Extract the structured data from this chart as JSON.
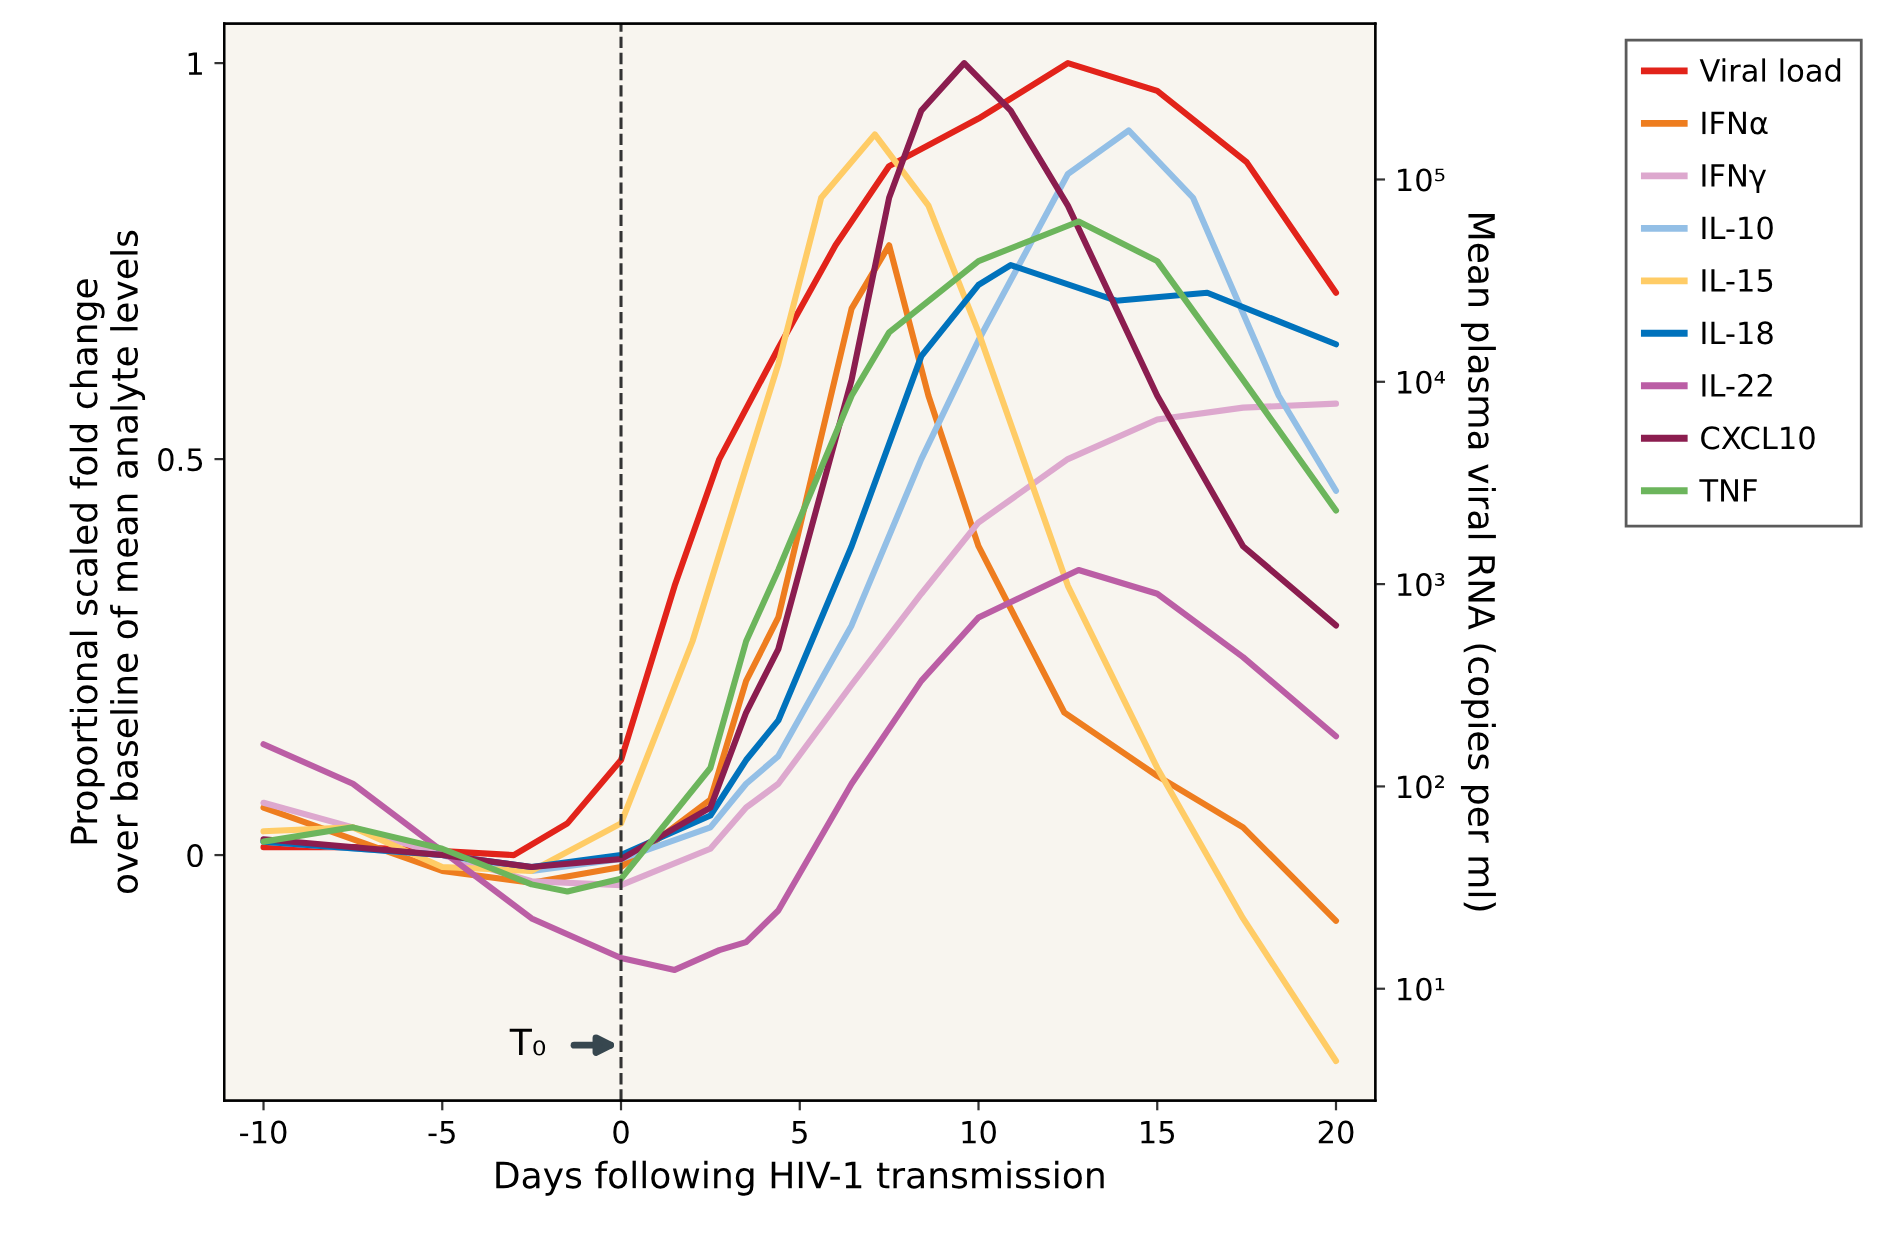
{
  "chart_data": {
    "type": "line",
    "xlabel": "Days following HIV-1 transmission",
    "ylabel": "Proportional scaled fold change\nover baseline of mean analyte levels",
    "y2label": "Mean plasma viral RNA (copies per ml)",
    "xlim": [
      -11.1,
      21.1
    ],
    "xticks": [
      -10,
      -5,
      0,
      5,
      10,
      15,
      20
    ],
    "ylim": [
      -0.31,
      1.05
    ],
    "yticks": [
      0,
      0.5,
      1
    ],
    "y2lim": [
      2.8,
      590000
    ],
    "y2ticks": [
      {
        "value": 10,
        "label": "10¹"
      },
      {
        "value": 100,
        "label": "10²"
      },
      {
        "value": 1000,
        "label": "10³"
      },
      {
        "value": 10000,
        "label": "10⁴"
      },
      {
        "value": 100000,
        "label": "10⁵"
      }
    ],
    "log": "y2",
    "grid": false,
    "legend": "right",
    "marker": "none",
    "line_style": "solid",
    "ref_lines": [
      {
        "axis": "x",
        "value": 0,
        "line_style": "dashed",
        "color": "#333333"
      }
    ],
    "annotations": [
      {
        "text": "T₀",
        "x": 0,
        "y": -0.24
      }
    ],
    "series": [
      {
        "name": "Viral load",
        "color": "#e2231a",
        "x": [
          -10,
          -7.5,
          -5,
          -3,
          -1.5,
          0,
          1.5,
          2.75,
          4.4,
          6,
          7.5,
          10,
          12.5,
          15,
          17.5,
          20
        ],
        "values": [
          0.01,
          0.01,
          0.005,
          0.0,
          0.04,
          0.12,
          0.34,
          0.5,
          0.64,
          0.77,
          0.87,
          0.93,
          1.0,
          0.965,
          0.875,
          0.71
        ]
      },
      {
        "name": "IFNα",
        "color": "#ee7d1f",
        "x": [
          -10,
          -5,
          -2.5,
          0,
          2.5,
          3.5,
          4.4,
          6.45,
          7.5,
          8.6,
          10,
          10.8,
          12.4,
          15,
          17.4,
          20
        ],
        "values": [
          0.06,
          -0.02,
          -0.035,
          -0.015,
          0.07,
          0.22,
          0.3,
          0.69,
          0.77,
          0.58,
          0.39,
          0.32,
          0.18,
          0.1,
          0.035,
          -0.083
        ]
      },
      {
        "name": "IFNγ",
        "color": "#dda8ce",
        "x": [
          -10,
          -7.5,
          -5,
          -2.5,
          0,
          2.5,
          3.5,
          4.4,
          6.45,
          8.4,
          10,
          12.5,
          15,
          17.4,
          20
        ],
        "values": [
          0.066,
          0.035,
          0.0,
          -0.033,
          -0.038,
          0.008,
          0.06,
          0.09,
          0.215,
          0.33,
          0.42,
          0.5,
          0.55,
          0.565,
          0.57
        ]
      },
      {
        "name": "IL-10",
        "color": "#93bfe6",
        "x": [
          -10,
          -5,
          -2.5,
          0,
          2.5,
          3.5,
          4.4,
          6.45,
          8.4,
          10,
          12.5,
          14.2,
          16,
          18.4,
          20
        ],
        "values": [
          0.017,
          0.0,
          -0.02,
          -0.005,
          0.035,
          0.09,
          0.125,
          0.29,
          0.5,
          0.65,
          0.86,
          0.915,
          0.83,
          0.58,
          0.46
        ]
      },
      {
        "name": "IL-15",
        "color": "#ffcc66",
        "x": [
          -10,
          -7.5,
          -5,
          -2.5,
          0,
          2,
          3.5,
          4.4,
          5.6,
          7.1,
          8.6,
          10,
          12.5,
          15,
          17.4,
          20
        ],
        "values": [
          0.03,
          0.035,
          -0.015,
          -0.02,
          0.04,
          0.27,
          0.49,
          0.62,
          0.83,
          0.91,
          0.82,
          0.66,
          0.34,
          0.11,
          -0.08,
          -0.26
        ]
      },
      {
        "name": "IL-18",
        "color": "#0072bc",
        "x": [
          -10,
          -5,
          -2.5,
          0,
          2.5,
          3.5,
          4.4,
          6.45,
          8.4,
          10,
          10.9,
          13.85,
          16.4,
          20
        ],
        "values": [
          0.017,
          0.0,
          -0.015,
          0.0,
          0.05,
          0.12,
          0.17,
          0.39,
          0.63,
          0.72,
          0.745,
          0.7,
          0.71,
          0.645
        ]
      },
      {
        "name": "IL-22",
        "color": "#bb5ea5",
        "x": [
          -10,
          -7.5,
          -5,
          -2.5,
          0,
          1.5,
          2.75,
          3.5,
          4.4,
          6.45,
          8.4,
          10,
          12.8,
          15,
          17.4,
          20
        ],
        "values": [
          0.14,
          0.09,
          0.005,
          -0.08,
          -0.13,
          -0.145,
          -0.12,
          -0.11,
          -0.07,
          0.09,
          0.22,
          0.3,
          0.36,
          0.33,
          0.25,
          0.15
        ]
      },
      {
        "name": "CXCL10",
        "color": "#8b1d4f",
        "x": [
          -10,
          -5,
          -2.5,
          0,
          2.5,
          3.5,
          4.4,
          6.45,
          7.5,
          8.4,
          9.6,
          10.9,
          12.5,
          15,
          17.4,
          20
        ],
        "values": [
          0.02,
          0.0,
          -0.015,
          -0.005,
          0.06,
          0.18,
          0.26,
          0.6,
          0.83,
          0.94,
          1.0,
          0.94,
          0.82,
          0.58,
          0.39,
          0.29
        ]
      },
      {
        "name": "TNF",
        "color": "#6cb55c",
        "x": [
          -10,
          -7.5,
          -5,
          -2.5,
          -1.5,
          0,
          2.5,
          3.5,
          4.4,
          6.45,
          7.5,
          10,
          12.8,
          15,
          17.4,
          20
        ],
        "values": [
          0.017,
          0.035,
          0.008,
          -0.037,
          -0.046,
          -0.03,
          0.11,
          0.27,
          0.36,
          0.58,
          0.66,
          0.75,
          0.8,
          0.75,
          0.6,
          0.435
        ]
      }
    ]
  }
}
